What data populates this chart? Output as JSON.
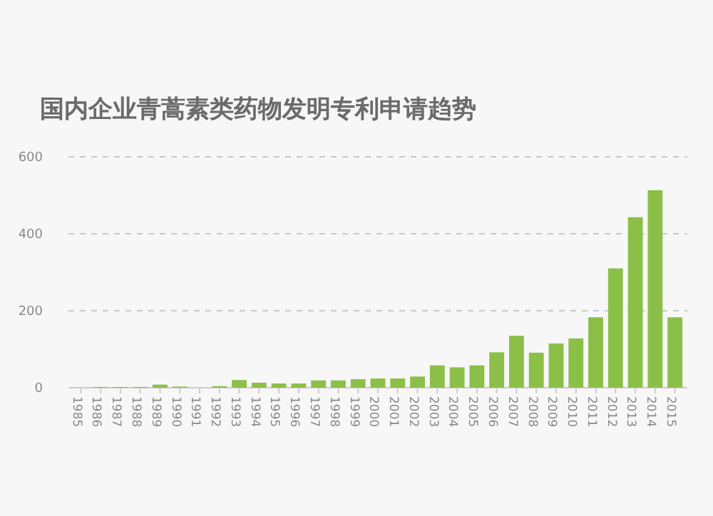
{
  "chart_data": {
    "type": "bar",
    "title": "国内企业青蒿素类药物发明专利申请趋势",
    "categories": [
      "1985",
      "1986",
      "1987",
      "1988",
      "1989",
      "1990",
      "1991",
      "1992",
      "1993",
      "1994",
      "1995",
      "1996",
      "1997",
      "1998",
      "1999",
      "2000",
      "2001",
      "2002",
      "2003",
      "2004",
      "2005",
      "2006",
      "2007",
      "2008",
      "2009",
      "2010",
      "2011",
      "2012",
      "2013",
      "2014",
      "2015"
    ],
    "values": [
      0,
      2,
      2,
      2,
      8,
      3,
      0,
      4,
      20,
      13,
      11,
      11,
      19,
      19,
      22,
      24,
      24,
      29,
      58,
      53,
      58,
      92,
      135,
      91,
      115,
      128,
      183,
      310,
      443,
      513,
      183
    ],
    "color": "#8cbf48",
    "ylim": [
      0,
      600
    ],
    "yticks": [
      0,
      200,
      400,
      600
    ],
    "grid": "y"
  }
}
